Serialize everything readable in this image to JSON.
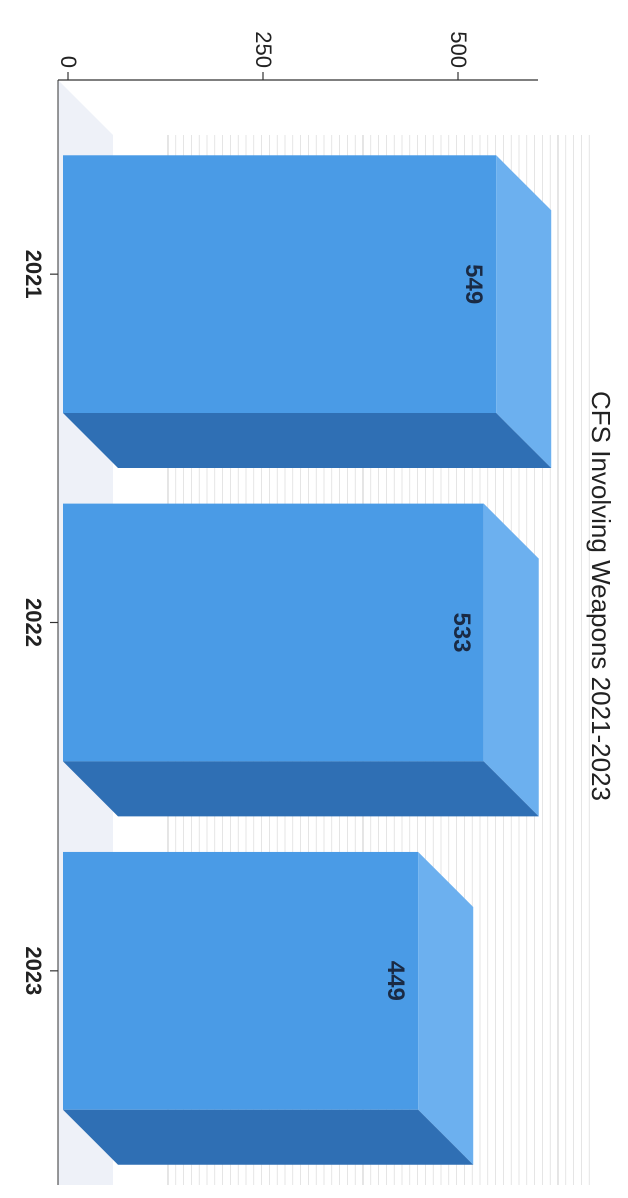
{
  "chart_data": {
    "type": "bar",
    "title": "CFS Involving Weapons 2021-2023",
    "xlabel": "",
    "ylabel": "",
    "categories": [
      "2021",
      "2022",
      "2023"
    ],
    "values": [
      549,
      533,
      449
    ],
    "data_labels": [
      "549",
      "533",
      "449"
    ],
    "ylim": [
      0,
      500
    ],
    "yticks": [
      "0",
      "250",
      "500"
    ],
    "grid": true,
    "legend": "none",
    "style": "3d-column",
    "orientation": "rotated-90-clockwise"
  },
  "colors": {
    "bar_front": "#4a9be6",
    "bar_side": "#6cb0ef",
    "bar_bottom": "#2f6fb4",
    "grid": "#d4d4d4",
    "axis": "#333333",
    "text": "#222222",
    "wall": "#eef1f8"
  }
}
